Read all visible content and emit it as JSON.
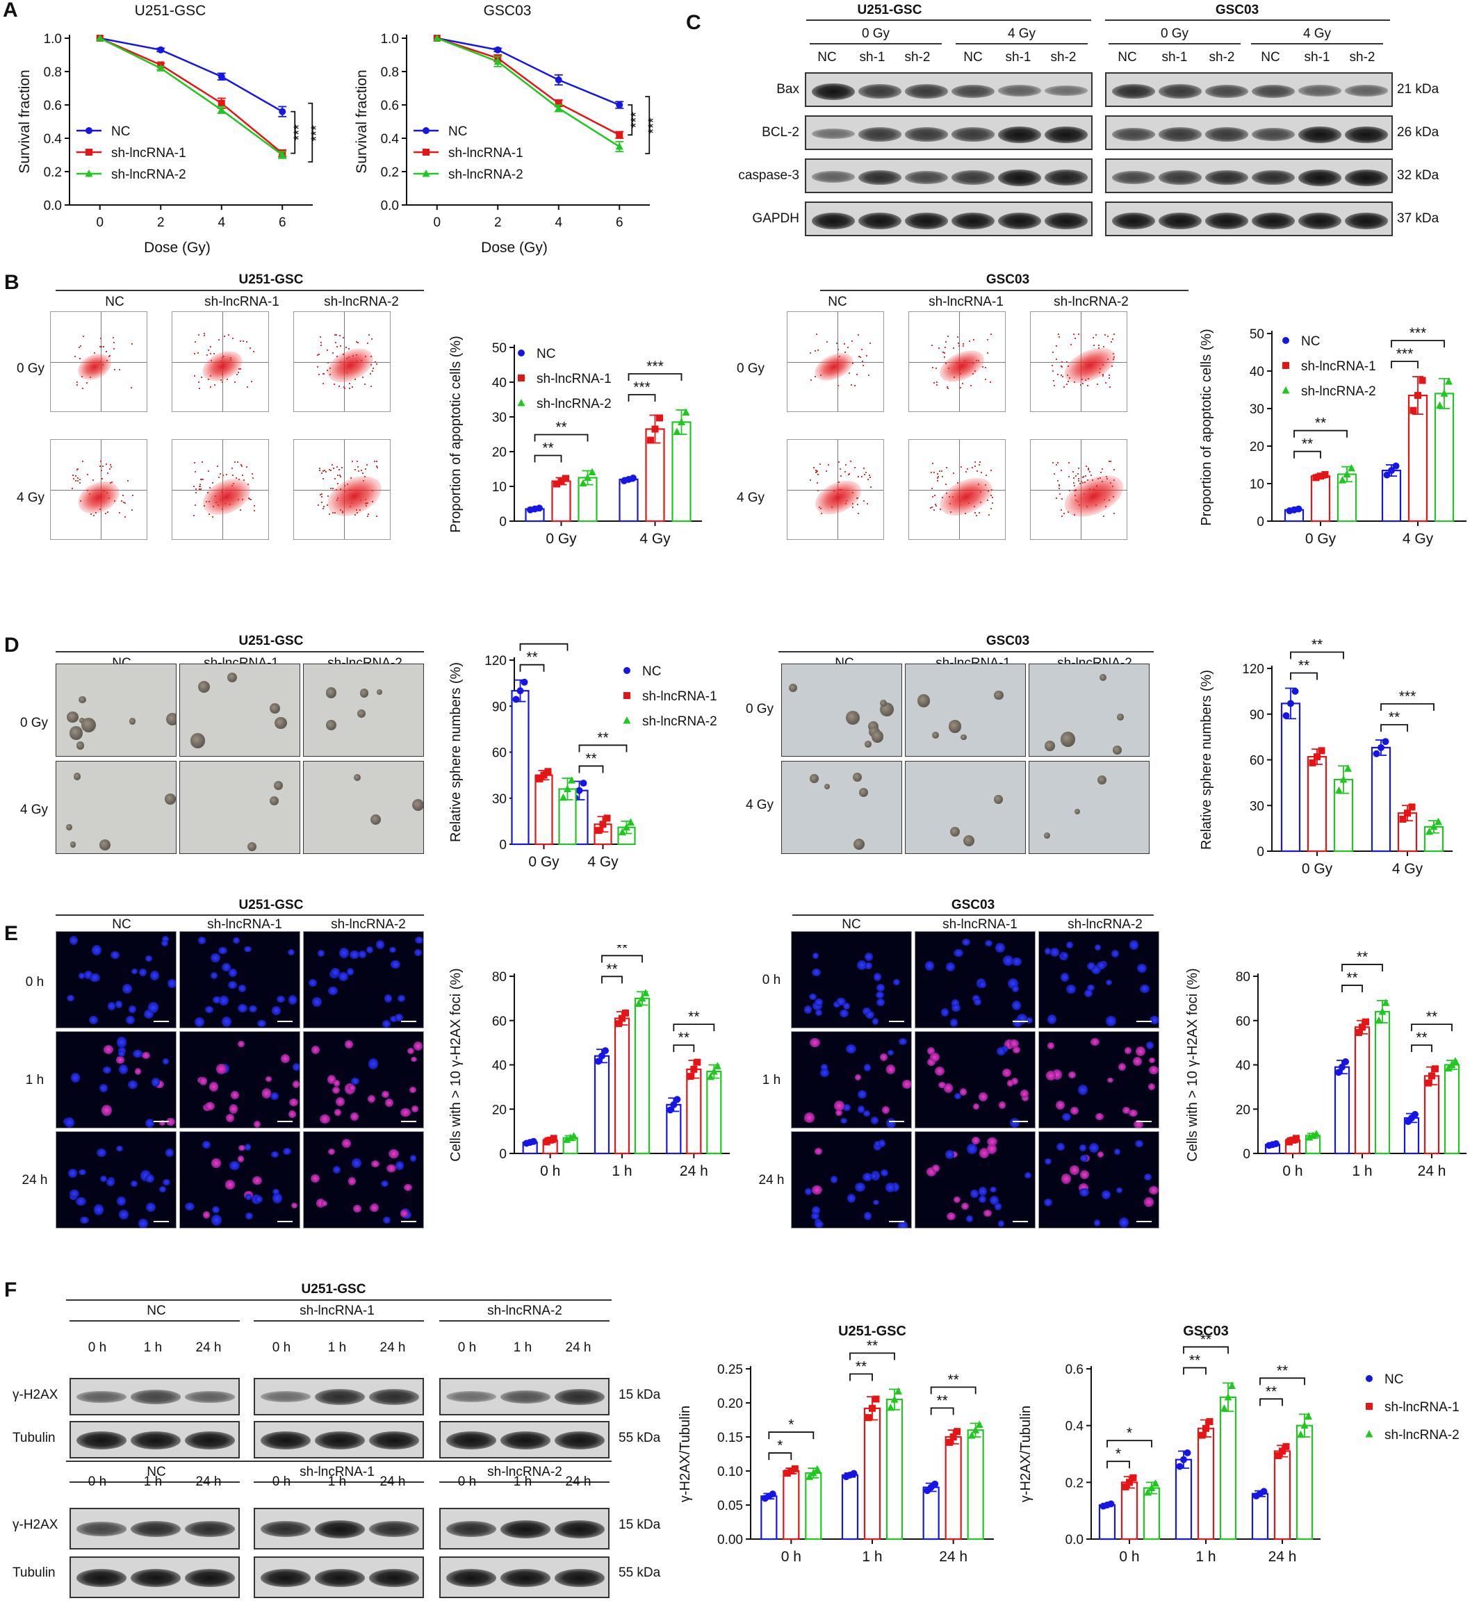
{
  "panel_labels": [
    "A",
    "B",
    "C",
    "D",
    "E",
    "F"
  ],
  "groups": {
    "nc": "NC",
    "sh1": "sh-lncRNA-1",
    "sh2": "sh-lncRNA-2",
    "sh1_short": "sh-1",
    "sh2_short": "sh-2"
  },
  "cell_lines": [
    "U251-GSC",
    "GSC03"
  ],
  "doses": [
    "0 Gy",
    "4 Gy"
  ],
  "times": [
    "0 h",
    "1 h",
    "24 h"
  ],
  "colors": {
    "nc": "#1515e6",
    "sh1": "#e61414",
    "sh2": "#1ec81e"
  },
  "blots_c": {
    "rows": [
      "Bax",
      "BCL-2",
      "caspase-3",
      "GAPDH"
    ],
    "kda": [
      "21 kDa",
      "26 kDa",
      "32 kDa",
      "37 kDa"
    ],
    "lanes": [
      "NC",
      "sh-1",
      "sh-2",
      "NC",
      "sh-1",
      "sh-2"
    ]
  },
  "blots_f": {
    "rows": [
      "γ-H2AX",
      "Tubulin"
    ],
    "kda": [
      "15 kDa",
      "55 kDa"
    ]
  },
  "sig": {
    "three": "***",
    "two": "**",
    "one": "*"
  },
  "chart_data": [
    {
      "id": "A1",
      "type": "line",
      "title": "U251-GSC",
      "xlabel": "Dose (Gy)",
      "ylabel": "Survival fraction",
      "x": [
        0,
        2,
        4,
        6
      ],
      "xlim": [
        -1,
        7
      ],
      "ylim": [
        0,
        1.0
      ],
      "xticks": [
        "0",
        "2",
        "4",
        "6"
      ],
      "yticks": [
        "0.0",
        "0.2",
        "0.4",
        "0.6",
        "0.8",
        "1.0"
      ],
      "legend": "left",
      "series": [
        {
          "name": "NC",
          "values": [
            1.0,
            0.93,
            0.77,
            0.56
          ],
          "err": [
            0,
            0.01,
            0.02,
            0.03
          ]
        },
        {
          "name": "sh-lncRNA-1",
          "values": [
            1.0,
            0.84,
            0.61,
            0.31
          ],
          "err": [
            0,
            0.01,
            0.03,
            0.02
          ]
        },
        {
          "name": "sh-lncRNA-2",
          "values": [
            1.0,
            0.82,
            0.57,
            0.3
          ],
          "err": [
            0,
            0.01,
            0.02,
            0.02
          ]
        }
      ],
      "sig_labels": [
        "***",
        "***"
      ]
    },
    {
      "id": "A2",
      "type": "line",
      "title": "GSC03",
      "xlabel": "Dose (Gy)",
      "ylabel": "Survival fraction",
      "x": [
        0,
        2,
        4,
        6
      ],
      "xlim": [
        -1,
        7
      ],
      "ylim": [
        0,
        1.0
      ],
      "xticks": [
        "0",
        "2",
        "4",
        "6"
      ],
      "yticks": [
        "0.0",
        "0.2",
        "0.4",
        "0.6",
        "0.8",
        "1.0"
      ],
      "legend": "left",
      "series": [
        {
          "name": "NC",
          "values": [
            1.0,
            0.93,
            0.75,
            0.6
          ],
          "err": [
            0,
            0.01,
            0.03,
            0.02
          ]
        },
        {
          "name": "sh-lncRNA-1",
          "values": [
            1.0,
            0.88,
            0.61,
            0.42
          ],
          "err": [
            0,
            0.02,
            0.02,
            0.02
          ]
        },
        {
          "name": "sh-lncRNA-2",
          "values": [
            1.0,
            0.86,
            0.58,
            0.35
          ],
          "err": [
            0,
            0.03,
            0.02,
            0.03
          ]
        }
      ],
      "sig_labels": [
        "***",
        "***"
      ]
    },
    {
      "id": "B1",
      "type": "bar",
      "ylabel": "Proportion of apoptotic cells (%)",
      "categories": [
        "0 Gy",
        "4 Gy"
      ],
      "ylim": [
        0,
        50
      ],
      "yticks": [
        "0",
        "10",
        "20",
        "30",
        "40",
        "50"
      ],
      "legend": "top-left",
      "series": [
        {
          "name": "NC",
          "values": [
            3.5,
            12
          ],
          "err": [
            0.3,
            0.5
          ]
        },
        {
          "name": "sh-lncRNA-1",
          "values": [
            11.5,
            26.5
          ],
          "err": [
            1.0,
            4.0
          ]
        },
        {
          "name": "sh-lncRNA-2",
          "values": [
            12.5,
            28.5
          ],
          "err": [
            2.0,
            3.5
          ]
        }
      ],
      "sigs": [
        {
          "cat": 0,
          "to": 1,
          "label": "**"
        },
        {
          "cat": 0,
          "to": 2,
          "label": "**"
        },
        {
          "cat": 1,
          "to": 1,
          "label": "***"
        },
        {
          "cat": 1,
          "to": 2,
          "label": "***"
        }
      ]
    },
    {
      "id": "B2",
      "type": "bar",
      "ylabel": "Proportion of apoptotic cells (%)",
      "categories": [
        "0 Gy",
        "4 Gy"
      ],
      "ylim": [
        0,
        50
      ],
      "yticks": [
        "0",
        "10",
        "20",
        "30",
        "40",
        "50"
      ],
      "legend": "top-left",
      "series": [
        {
          "name": "NC",
          "values": [
            3,
            13.5
          ],
          "err": [
            0.3,
            1.5
          ]
        },
        {
          "name": "sh-lncRNA-1",
          "values": [
            12,
            33.5
          ],
          "err": [
            0.5,
            5.0
          ]
        },
        {
          "name": "sh-lncRNA-2",
          "values": [
            12.5,
            34
          ],
          "err": [
            2.0,
            4.0
          ]
        }
      ],
      "sigs": [
        {
          "cat": 0,
          "to": 1,
          "label": "**"
        },
        {
          "cat": 0,
          "to": 2,
          "label": "**"
        },
        {
          "cat": 1,
          "to": 1,
          "label": "***"
        },
        {
          "cat": 1,
          "to": 2,
          "label": "***"
        }
      ]
    },
    {
      "id": "D1",
      "type": "bar",
      "ylabel": "Relative sphere numbers (%)",
      "categories": [
        "0 Gy",
        "4 Gy"
      ],
      "ylim": [
        0,
        120
      ],
      "yticks": [
        "0",
        "30",
        "60",
        "90",
        "120"
      ],
      "legend": "top-right",
      "series": [
        {
          "name": "NC",
          "values": [
            100,
            35
          ],
          "err": [
            7,
            6
          ]
        },
        {
          "name": "sh-lncRNA-1",
          "values": [
            45,
            13
          ],
          "err": [
            3,
            5
          ]
        },
        {
          "name": "sh-lncRNA-2",
          "values": [
            36,
            11
          ],
          "err": [
            7,
            4
          ]
        }
      ],
      "sigs": [
        {
          "cat": 0,
          "to": 1,
          "label": "**"
        },
        {
          "cat": 0,
          "to": 2,
          "label": "**"
        },
        {
          "cat": 1,
          "to": 1,
          "label": "**"
        },
        {
          "cat": 1,
          "to": 2,
          "label": "**"
        }
      ]
    },
    {
      "id": "D2",
      "type": "bar",
      "ylabel": "Relative sphere numbers (%)",
      "categories": [
        "0 Gy",
        "4 Gy"
      ],
      "ylim": [
        0,
        120
      ],
      "yticks": [
        "0",
        "30",
        "60",
        "90",
        "120"
      ],
      "series": [
        {
          "name": "NC",
          "values": [
            97,
            68
          ],
          "err": [
            10,
            5
          ]
        },
        {
          "name": "sh-lncRNA-1",
          "values": [
            62,
            25
          ],
          "err": [
            5,
            5
          ]
        },
        {
          "name": "sh-lncRNA-2",
          "values": [
            47,
            16
          ],
          "err": [
            9,
            4
          ]
        }
      ],
      "sigs": [
        {
          "cat": 0,
          "to": 1,
          "label": "**"
        },
        {
          "cat": 0,
          "to": 2,
          "label": "**"
        },
        {
          "cat": 1,
          "to": 1,
          "label": "**"
        },
        {
          "cat": 1,
          "to": 2,
          "label": "***"
        }
      ]
    },
    {
      "id": "E1",
      "type": "bar",
      "ylabel": "Cells with > 10 γ-H2AX foci (%)",
      "categories": [
        "0 h",
        "1 h",
        "24 h"
      ],
      "ylim": [
        0,
        80
      ],
      "yticks": [
        "0",
        "20",
        "40",
        "60",
        "80"
      ],
      "series": [
        {
          "name": "NC",
          "values": [
            5,
            44,
            22
          ],
          "err": [
            0.5,
            3,
            3
          ]
        },
        {
          "name": "sh-lncRNA-1",
          "values": [
            6,
            61,
            38
          ],
          "err": [
            1,
            3,
            4
          ]
        },
        {
          "name": "sh-lncRNA-2",
          "values": [
            7,
            70,
            37
          ],
          "err": [
            1,
            3,
            3
          ]
        }
      ],
      "sigs": [
        {
          "cat": 1,
          "to": 1,
          "label": "**"
        },
        {
          "cat": 1,
          "to": 2,
          "label": "**"
        },
        {
          "cat": 2,
          "to": 1,
          "label": "**"
        },
        {
          "cat": 2,
          "to": 2,
          "label": "**"
        }
      ]
    },
    {
      "id": "E2",
      "type": "bar",
      "ylabel": "Cells with > 10 γ-H2AX foci (%)",
      "categories": [
        "0 h",
        "1 h",
        "24 h"
      ],
      "ylim": [
        0,
        80
      ],
      "yticks": [
        "0",
        "20",
        "40",
        "60",
        "80"
      ],
      "series": [
        {
          "name": "NC",
          "values": [
            4,
            39,
            16
          ],
          "err": [
            0.5,
            3,
            2
          ]
        },
        {
          "name": "sh-lncRNA-1",
          "values": [
            6,
            57,
            35
          ],
          "err": [
            1,
            3,
            4
          ]
        },
        {
          "name": "sh-lncRNA-2",
          "values": [
            8,
            64,
            40
          ],
          "err": [
            1,
            5,
            2
          ]
        }
      ],
      "sigs": [
        {
          "cat": 1,
          "to": 1,
          "label": "**"
        },
        {
          "cat": 1,
          "to": 2,
          "label": "**"
        },
        {
          "cat": 2,
          "to": 1,
          "label": "**"
        },
        {
          "cat": 2,
          "to": 2,
          "label": "**"
        }
      ]
    },
    {
      "id": "F1",
      "type": "bar",
      "title": "U251-GSC",
      "ylabel": "γ-H2AX/Tubulin",
      "categories": [
        "0 h",
        "1 h",
        "24 h"
      ],
      "ylim": [
        0,
        0.25
      ],
      "yticks": [
        "0.00",
        "0.05",
        "0.10",
        "0.15",
        "0.20",
        "0.25"
      ],
      "series": [
        {
          "name": "NC",
          "values": [
            0.063,
            0.094,
            0.076
          ],
          "err": [
            0.004,
            0.003,
            0.006
          ]
        },
        {
          "name": "sh-lncRNA-1",
          "values": [
            0.1,
            0.192,
            0.15
          ],
          "err": [
            0.004,
            0.017,
            0.01
          ]
        },
        {
          "name": "sh-lncRNA-2",
          "values": [
            0.097,
            0.205,
            0.16
          ],
          "err": [
            0.007,
            0.015,
            0.01
          ]
        }
      ],
      "sigs": [
        {
          "cat": 0,
          "to": 1,
          "label": "*"
        },
        {
          "cat": 0,
          "to": 2,
          "label": "*"
        },
        {
          "cat": 1,
          "to": 1,
          "label": "**"
        },
        {
          "cat": 1,
          "to": 2,
          "label": "**"
        },
        {
          "cat": 2,
          "to": 1,
          "label": "**"
        },
        {
          "cat": 2,
          "to": 2,
          "label": "**"
        }
      ]
    },
    {
      "id": "F2",
      "type": "bar",
      "title": "GSC03",
      "ylabel": "γ-H2AX/Tubulin",
      "categories": [
        "0 h",
        "1 h",
        "24 h"
      ],
      "ylim": [
        0,
        0.6
      ],
      "yticks": [
        "0.0",
        "0.2",
        "0.4",
        "0.6"
      ],
      "legend": "right",
      "series": [
        {
          "name": "NC",
          "values": [
            0.12,
            0.28,
            0.16
          ],
          "err": [
            0.005,
            0.03,
            0.01
          ]
        },
        {
          "name": "sh-lncRNA-1",
          "values": [
            0.2,
            0.39,
            0.31
          ],
          "err": [
            0.02,
            0.03,
            0.02
          ]
        },
        {
          "name": "sh-lncRNA-2",
          "values": [
            0.18,
            0.5,
            0.4
          ],
          "err": [
            0.02,
            0.05,
            0.04
          ]
        }
      ],
      "sigs": [
        {
          "cat": 0,
          "to": 1,
          "label": "*"
        },
        {
          "cat": 0,
          "to": 2,
          "label": "*"
        },
        {
          "cat": 1,
          "to": 1,
          "label": "**"
        },
        {
          "cat": 1,
          "to": 2,
          "label": "**"
        },
        {
          "cat": 2,
          "to": 1,
          "label": "**"
        },
        {
          "cat": 2,
          "to": 2,
          "label": "**"
        }
      ]
    }
  ]
}
